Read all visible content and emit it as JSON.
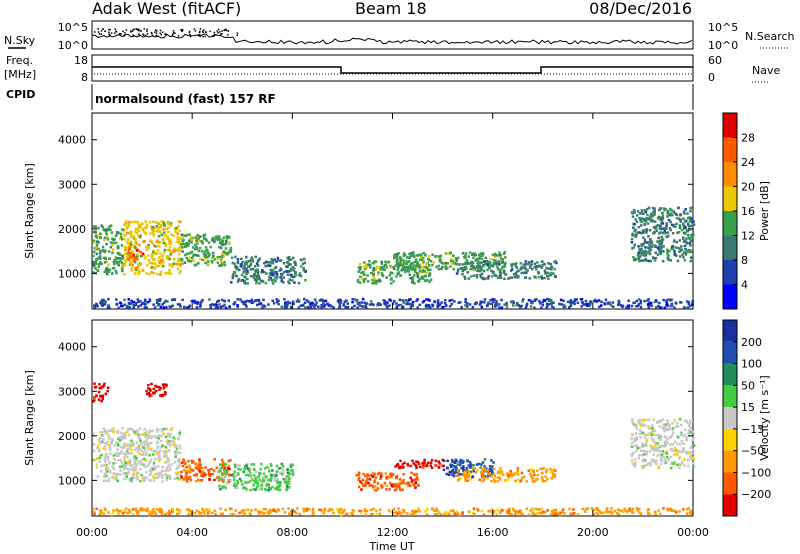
{
  "header": {
    "station": "Adak West (fitACF)",
    "beam": "Beam 18",
    "date": "08/Dec/2016"
  },
  "noise_panel": {
    "left_label": "N.Sky",
    "right_label": "N.Search",
    "y_ticks": [
      "10^5",
      "10^0"
    ]
  },
  "freq_panel": {
    "left_label_line1": "Freq.",
    "left_label_line2": "[MHz]",
    "left_ticks": [
      "18",
      "8"
    ],
    "right_label": "Nave",
    "right_ticks": [
      "60",
      "0"
    ]
  },
  "cpid": {
    "label": "CPID",
    "program": "normalsound (fast) 157 RF"
  },
  "colors": {
    "power": [
      "#0000ff",
      "#1f3fb0",
      "#3a7a6e",
      "#39a04a",
      "#e8c800",
      "#ff8c00",
      "#ff5a00",
      "#e00000"
    ],
    "velocity": [
      "#e00000",
      "#ff5a00",
      "#ff9900",
      "#ffd000",
      "#c8c8c8",
      "#44cc44",
      "#228b5a",
      "#1f4fb0",
      "#1a2fa0"
    ]
  },
  "chart_data": [
    {
      "type": "heatmap",
      "name": "power",
      "xlabel": "",
      "ylabel": "Slant Range [km]",
      "x_ticks": [
        "00:00",
        "04:00",
        "08:00",
        "12:00",
        "16:00",
        "20:00",
        "00:00"
      ],
      "y_ticks": [
        "1000",
        "2000",
        "3000",
        "4000"
      ],
      "xlim": [
        0,
        24
      ],
      "ylim": [
        200,
        4600
      ],
      "colorbar": {
        "label": "Power [dB]",
        "ticks": [
          "4",
          "8",
          "12",
          "16",
          "20",
          "24",
          "28"
        ]
      },
      "regions": [
        {
          "t0": 0.0,
          "t1": 1.2,
          "r0": 1000,
          "r1": 2100,
          "level": 3
        },
        {
          "t0": 1.2,
          "t1": 3.5,
          "r0": 1000,
          "r1": 2200,
          "level": 4
        },
        {
          "t0": 1.4,
          "t1": 2.0,
          "r0": 1300,
          "r1": 1600,
          "level": 6
        },
        {
          "t0": 3.5,
          "t1": 5.5,
          "r0": 1200,
          "r1": 1900,
          "level": 3
        },
        {
          "t0": 5.5,
          "t1": 8.5,
          "r0": 800,
          "r1": 1400,
          "level": 2
        },
        {
          "t0": 10.5,
          "t1": 13.5,
          "r0": 800,
          "r1": 1300,
          "level": 3
        },
        {
          "t0": 12.0,
          "t1": 16.5,
          "r0": 1100,
          "r1": 1500,
          "level": 3
        },
        {
          "t0": 14.5,
          "t1": 18.5,
          "r0": 900,
          "r1": 1300,
          "level": 2
        },
        {
          "t0": 21.5,
          "t1": 24.0,
          "r0": 1300,
          "r1": 2500,
          "level": 2
        },
        {
          "t0": 0.0,
          "t1": 24.0,
          "r0": 250,
          "r1": 450,
          "level": 1
        }
      ]
    },
    {
      "type": "heatmap",
      "name": "velocity",
      "xlabel": "Time UT",
      "ylabel": "Slant Range [km]",
      "x_ticks": [
        "00:00",
        "04:00",
        "08:00",
        "12:00",
        "16:00",
        "20:00",
        "00:00"
      ],
      "y_ticks": [
        "1000",
        "2000",
        "3000",
        "4000"
      ],
      "xlim": [
        0,
        24
      ],
      "ylim": [
        200,
        4600
      ],
      "colorbar": {
        "label": "Velocity [m s⁻¹]",
        "ticks": [
          "200",
          "100",
          "50",
          "15",
          "−15",
          "−50",
          "−100",
          "−200"
        ]
      },
      "regions": [
        {
          "t0": 0.0,
          "t1": 3.5,
          "r0": 1000,
          "r1": 2200,
          "level": 4
        },
        {
          "t0": 0.0,
          "t1": 0.6,
          "r0": 2800,
          "r1": 3200,
          "level": 0
        },
        {
          "t0": 2.0,
          "t1": 3.0,
          "r0": 2900,
          "r1": 3200,
          "level": 0
        },
        {
          "t0": 3.5,
          "t1": 5.5,
          "r0": 1000,
          "r1": 1500,
          "level": 1
        },
        {
          "t0": 5.0,
          "t1": 8.0,
          "r0": 800,
          "r1": 1400,
          "level": 5
        },
        {
          "t0": 10.5,
          "t1": 13.0,
          "r0": 800,
          "r1": 1200,
          "level": 1
        },
        {
          "t0": 12.0,
          "t1": 14.0,
          "r0": 1300,
          "r1": 1500,
          "level": 0
        },
        {
          "t0": 14.0,
          "t1": 16.0,
          "r0": 1100,
          "r1": 1500,
          "level": 7
        },
        {
          "t0": 14.5,
          "t1": 18.5,
          "r0": 1000,
          "r1": 1300,
          "level": 2
        },
        {
          "t0": 21.5,
          "t1": 24.0,
          "r0": 1300,
          "r1": 2400,
          "level": 4
        },
        {
          "t0": 0.0,
          "t1": 24.0,
          "r0": 250,
          "r1": 400,
          "level": 2
        }
      ]
    }
  ]
}
